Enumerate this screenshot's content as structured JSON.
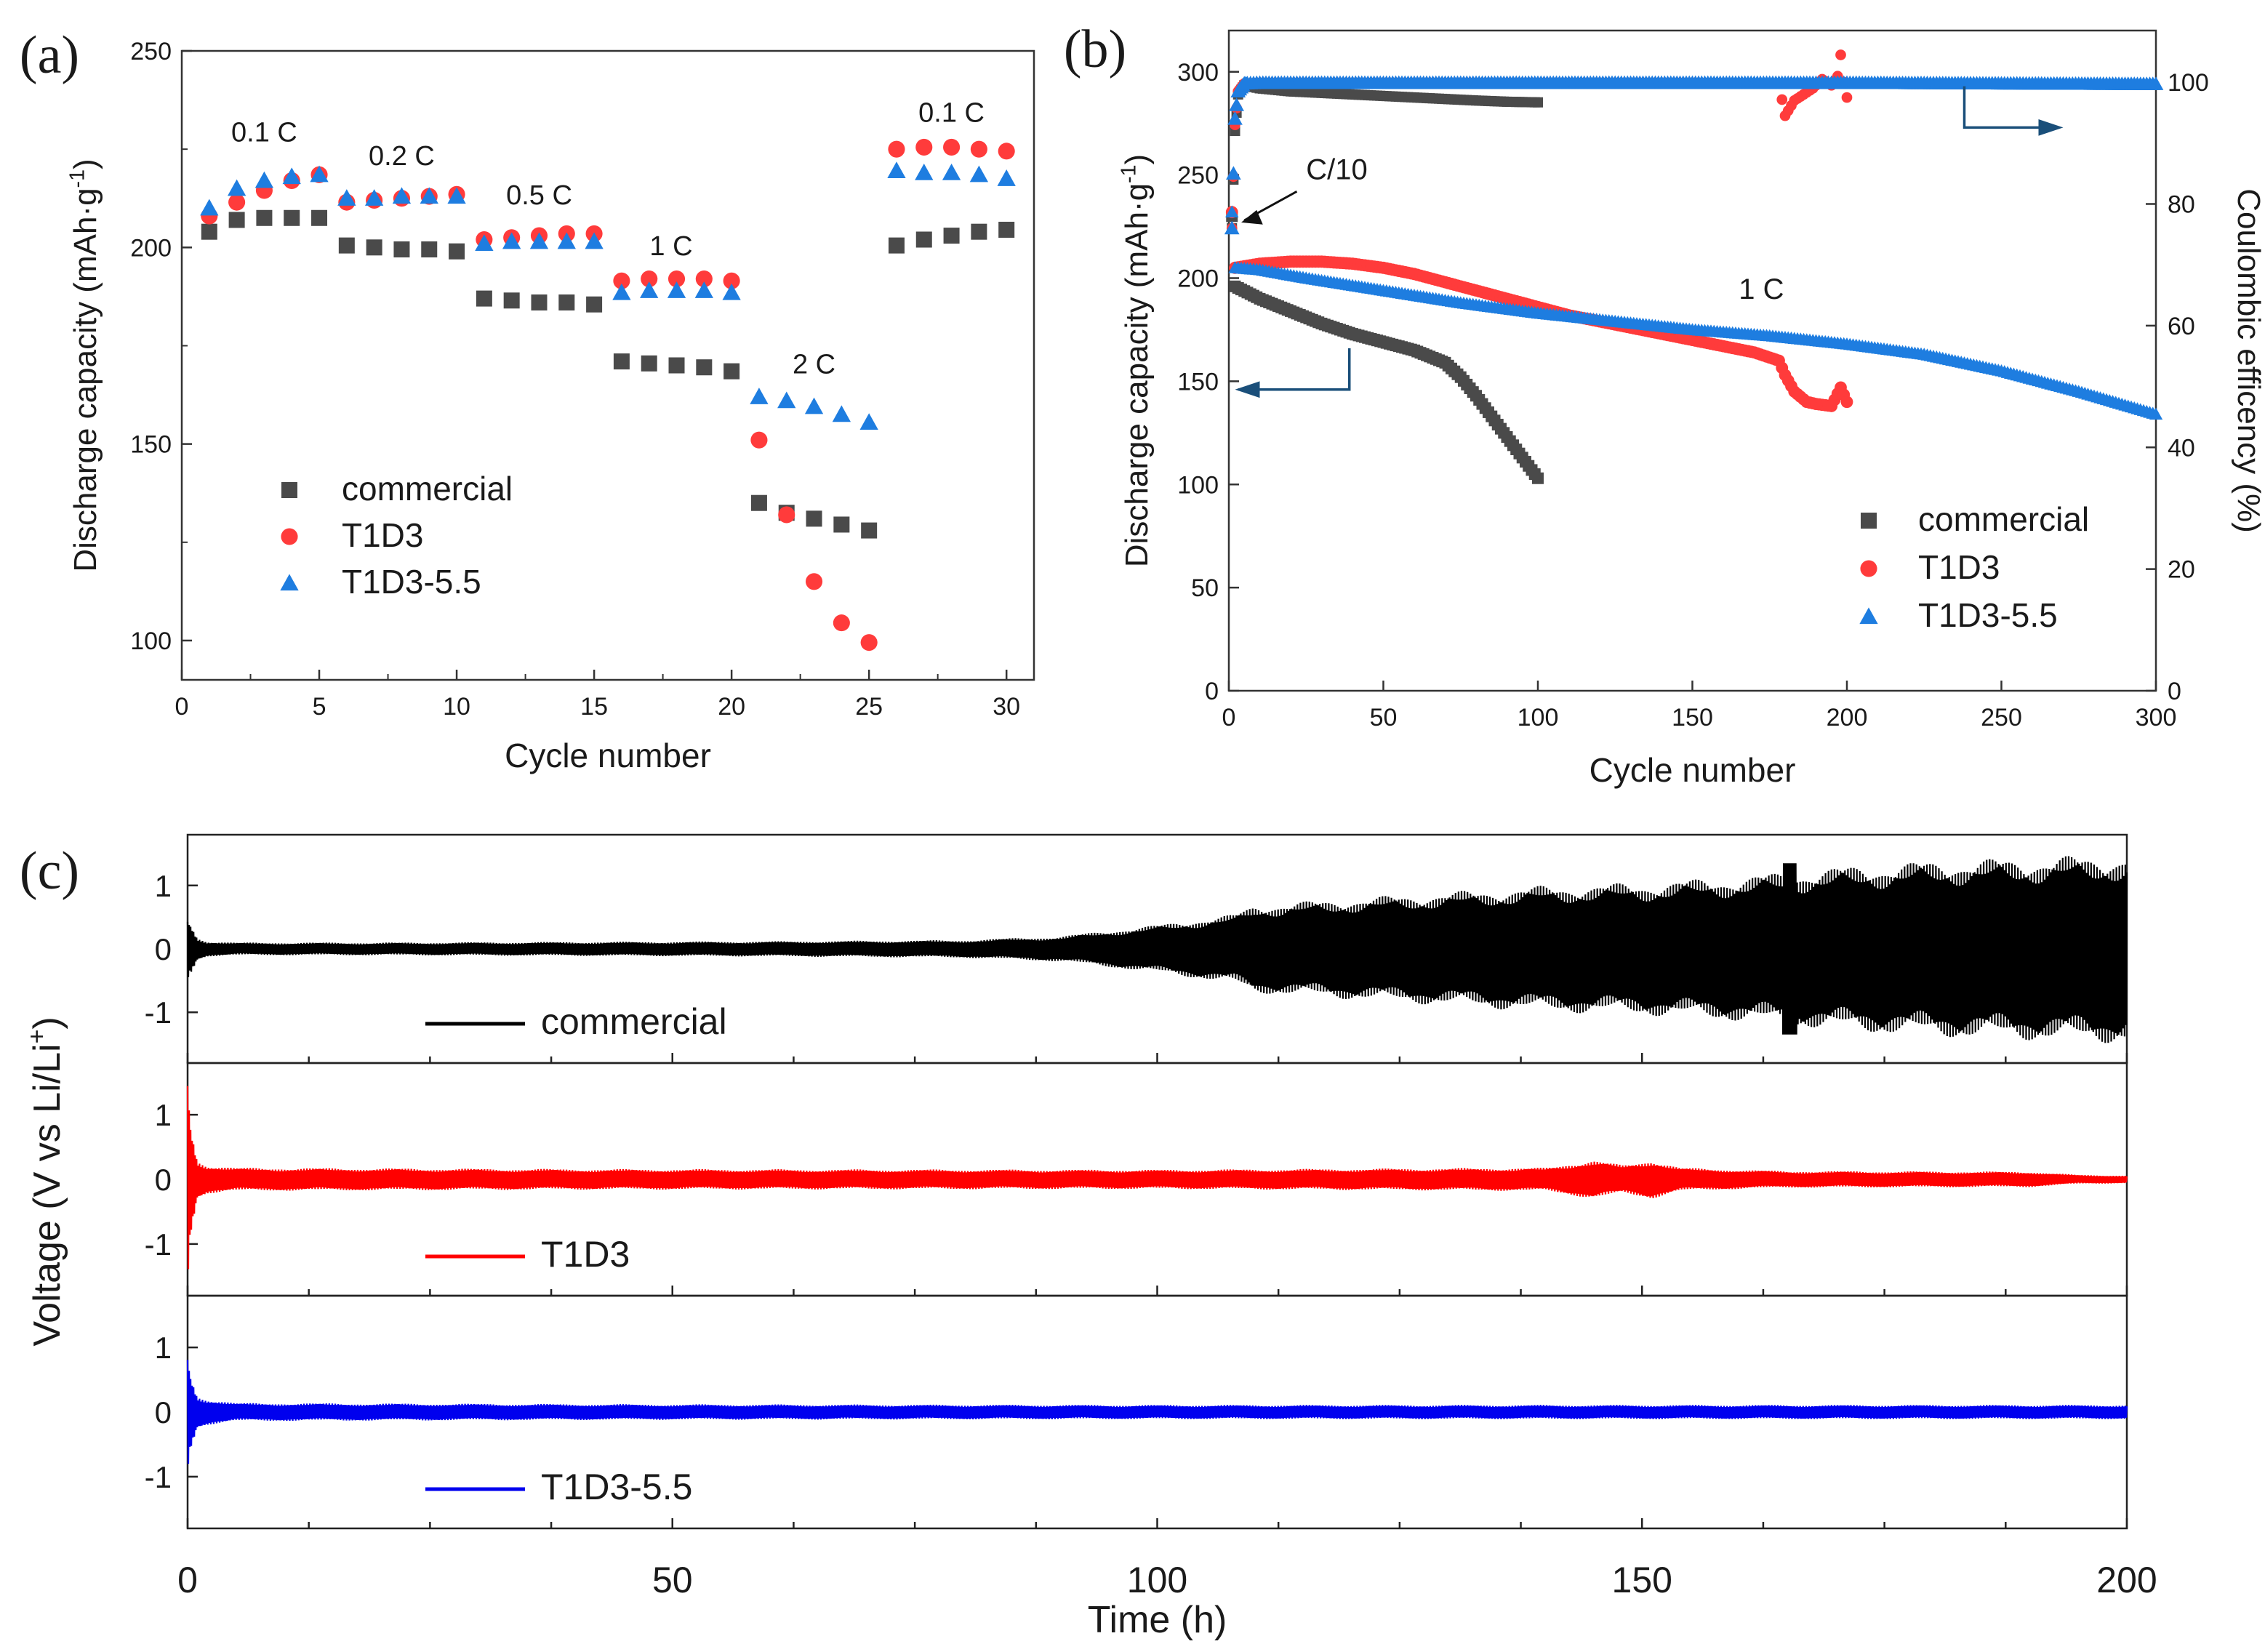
{
  "colors": {
    "commercial": "#4a4a4a",
    "T1D3": "#ff3b3b",
    "T1D3_5_5": "#1e7de0",
    "voltage_commercial": "#000000",
    "voltage_T1D3": "#ff0000",
    "voltage_T1D3_5_5": "#0000ee",
    "arrow": "#1a4f7a"
  },
  "chart_data": [
    {
      "panel": "(a)",
      "type": "scatter",
      "xlabel": "Cycle number",
      "ylabel": "Discharge capacity (mAh·g",
      "ylabel_sup": "-1",
      "ylabel_end": ")",
      "xlim": [
        0,
        31
      ],
      "ylim": [
        90,
        250
      ],
      "xticks": [
        0,
        5,
        10,
        15,
        20,
        25,
        30
      ],
      "yticks": [
        100,
        150,
        200,
        250
      ],
      "legend_position": "bottom-left",
      "rate_labels": [
        {
          "text": "0.1 C",
          "x": 3,
          "y": 227
        },
        {
          "text": "0.2 C",
          "x": 8,
          "y": 221
        },
        {
          "text": "0.5 C",
          "x": 13,
          "y": 211
        },
        {
          "text": "1 C",
          "x": 17.8,
          "y": 198
        },
        {
          "text": "2 C",
          "x": 23,
          "y": 168
        },
        {
          "text": "0.1 C",
          "x": 28,
          "y": 232
        }
      ],
      "x": [
        1,
        2,
        3,
        4,
        5,
        6,
        7,
        8,
        9,
        10,
        11,
        12,
        13,
        14,
        15,
        16,
        17,
        18,
        19,
        20,
        21,
        22,
        23,
        24,
        25,
        26,
        27,
        28,
        29,
        30
      ],
      "series": [
        {
          "name": "commercial",
          "marker": "square",
          "values": [
            204,
            207,
            207.5,
            207.5,
            207.5,
            200.5,
            200,
            199.5,
            199.5,
            199,
            187,
            186.5,
            186,
            186,
            185.5,
            171,
            170.5,
            170,
            169.5,
            168.5,
            135,
            132.5,
            131,
            129.5,
            128,
            200.5,
            202,
            203,
            204,
            204.5
          ]
        },
        {
          "name": "T1D3",
          "marker": "circle",
          "values": [
            208,
            211.5,
            214.5,
            217,
            218.5,
            211.5,
            212,
            212.5,
            213,
            213.5,
            202,
            202.5,
            203,
            203.5,
            203.5,
            191.5,
            192,
            192,
            192,
            191.5,
            151,
            132,
            115,
            104.5,
            99.5,
            225,
            225.5,
            225.5,
            225,
            224.5
          ]
        },
        {
          "name": "T1D3-5.5",
          "marker": "triangle",
          "values": [
            210,
            215,
            217,
            218,
            218.5,
            212.5,
            212.5,
            213,
            213,
            213,
            201,
            201.5,
            201.5,
            201.5,
            201.5,
            188.5,
            189,
            189,
            189,
            188.5,
            162,
            161,
            159.5,
            157.5,
            155.5,
            219.5,
            219,
            219,
            218.5,
            217.5
          ]
        }
      ]
    },
    {
      "panel": "(b)",
      "type": "scatter",
      "xlabel": "Cycle number",
      "ylabel": "Discharge capacity (mAh·g",
      "ylabel_sup": "-1",
      "ylabel_end": ")",
      "y2label": "Coulombic efficency (%)",
      "xlim": [
        0,
        300
      ],
      "ylim": [
        0,
        320
      ],
      "y2lim": [
        0,
        108.5
      ],
      "xticks": [
        0,
        50,
        100,
        150,
        200,
        250,
        300
      ],
      "yticks": [
        0,
        50,
        100,
        150,
        200,
        250,
        300
      ],
      "y2ticks": [
        0,
        20,
        40,
        60,
        80,
        100
      ],
      "legend_position": "bottom-right",
      "annotations": [
        {
          "text": "C/10",
          "x": 25,
          "y": 248
        },
        {
          "text": "1 C",
          "x": 165,
          "y": 190
        }
      ],
      "capacity_series": [
        {
          "name": "commercial",
          "marker": "square",
          "x": [
            0,
            2,
            10,
            20,
            30,
            40,
            50,
            60,
            70,
            75,
            80,
            85,
            90,
            95,
            100
          ],
          "y": [
            230,
            196,
            190,
            184,
            178,
            173,
            169,
            165,
            159,
            152,
            143,
            133,
            123,
            113,
            103
          ]
        },
        {
          "name": "T1D3",
          "marker": "circle",
          "x": [
            0,
            2,
            10,
            20,
            30,
            40,
            50,
            60,
            70,
            80,
            90,
            100,
            110,
            120,
            130,
            140,
            150,
            160,
            170,
            178,
            180,
            183,
            187,
            190,
            195,
            198,
            200
          ],
          "y": [
            232,
            205,
            207,
            208,
            208,
            207,
            205,
            202,
            198,
            194,
            190,
            186,
            182,
            179,
            176,
            173,
            170,
            167,
            164,
            160,
            153,
            145,
            140,
            139,
            138,
            147,
            140
          ]
        },
        {
          "name": "T1D3-5.5",
          "marker": "triangle",
          "x": [
            0,
            2,
            10,
            25,
            50,
            75,
            100,
            125,
            150,
            175,
            200,
            225,
            250,
            275,
            300
          ],
          "y": [
            232,
            205,
            204,
            200,
            194,
            188,
            183,
            179,
            175,
            172,
            168,
            163,
            155,
            145,
            134
          ]
        }
      ],
      "efficiency_series": [
        {
          "name": "commercial",
          "marker": "square",
          "x": [
            1,
            2,
            3,
            5,
            10,
            20,
            40,
            60,
            80,
            90,
            100
          ],
          "y": [
            76,
            92,
            98,
            99.5,
            99,
            98.5,
            98,
            97.5,
            97,
            96.8,
            96.7
          ]
        },
        {
          "name": "T1D3",
          "marker": "circle",
          "x": [
            1,
            2,
            3,
            5,
            10,
            50,
            100,
            150,
            178,
            180,
            183,
            186,
            189,
            192,
            195,
            197,
            198,
            199,
            200
          ],
          "y": [
            76,
            93,
            98.5,
            99.8,
            99.9,
            99.9,
            99.9,
            99.9,
            99.8,
            94.5,
            97,
            98,
            99,
            100.5,
            99.5,
            101,
            104.5,
            100,
            97.5
          ]
        },
        {
          "name": "T1D3-5.5",
          "marker": "triangle",
          "x": [
            1,
            2,
            3,
            5,
            10,
            50,
            100,
            150,
            200,
            250,
            300
          ],
          "y": [
            76,
            94,
            98.5,
            99.8,
            99.9,
            99.9,
            99.9,
            99.9,
            99.9,
            99.8,
            99.7
          ]
        }
      ]
    },
    {
      "panel": "(c)",
      "type": "line",
      "xlabel": "Time (h)",
      "ylabel": "Voltage (V vs Li/Li",
      "ylabel_sup": "+",
      "ylabel_end": ")",
      "xlim": [
        0,
        200
      ],
      "xticks": [
        0,
        50,
        100,
        150,
        200
      ],
      "ylim": [
        -1.8,
        1.8
      ],
      "yticks": [
        -1,
        0,
        1
      ],
      "subplots": [
        {
          "name": "commercial",
          "envelope_t": [
            0,
            0.5,
            1,
            2,
            5,
            20,
            40,
            60,
            80,
            90,
            100,
            108,
            110,
            120,
            130,
            140,
            150,
            160,
            170,
            180,
            190,
            200
          ],
          "envelope_v": [
            0.5,
            0.35,
            0.18,
            0.12,
            0.1,
            0.1,
            0.11,
            0.12,
            0.14,
            0.2,
            0.38,
            0.55,
            0.7,
            0.8,
            0.9,
            1.0,
            1.05,
            1.15,
            1.3,
            1.4,
            1.45,
            1.5
          ]
        },
        {
          "name": "T1D3",
          "envelope_t": [
            0,
            0.3,
            1,
            2,
            5,
            40,
            100,
            140,
            145,
            148,
            151,
            154,
            160,
            165,
            190,
            195,
            200
          ],
          "envelope_v": [
            1.7,
            0.9,
            0.3,
            0.22,
            0.18,
            0.16,
            0.15,
            0.18,
            0.3,
            0.22,
            0.3,
            0.18,
            0.15,
            0.13,
            0.12,
            0.07,
            0.06
          ]
        },
        {
          "name": "T1D3-5.5",
          "envelope_t": [
            0,
            0.3,
            1,
            2,
            5,
            50,
            100,
            150,
            200
          ],
          "envelope_v": [
            0.95,
            0.6,
            0.25,
            0.2,
            0.14,
            0.12,
            0.11,
            0.11,
            0.11
          ]
        }
      ]
    }
  ]
}
